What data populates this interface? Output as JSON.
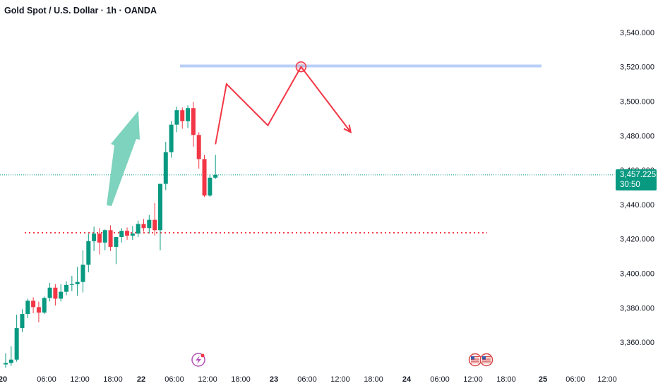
{
  "header": {
    "title": "Gold Spot / U.S. Dollar · 1h · OANDA"
  },
  "price_tag": {
    "price": "3,457.225",
    "countdown": "30:50"
  },
  "colors": {
    "up": "#089981",
    "down": "#f23645",
    "arrow_fill": "#7dd3bd",
    "resistance_line": "#b8cff7",
    "projection_line": "#f23645",
    "support_line": "#f23645",
    "price_line": "#089981"
  },
  "icons": [
    "lightning-event-icon",
    "us-flag-event-icon",
    "us-flag-event-icon"
  ],
  "chart_data": {
    "type": "candlestick",
    "title": "Gold Spot / U.S. Dollar · 1h · OANDA",
    "y_ticks": [
      "3,360.000",
      "3,380.000",
      "3,400.000",
      "3,420.000",
      "3,440.000",
      "3,460.000",
      "3,480.000",
      "3,500.000",
      "3,520.000",
      "3,540.000"
    ],
    "y_tick_values": [
      3360,
      3380,
      3400,
      3420,
      3440,
      3460,
      3480,
      3500,
      3520,
      3540
    ],
    "x_ticks": [
      {
        "label": "20",
        "bold": true
      },
      {
        "label": "06:00"
      },
      {
        "label": "12:00"
      },
      {
        "label": "18:00"
      },
      {
        "label": "22",
        "bold": true
      },
      {
        "label": "06:00"
      },
      {
        "label": "12:00"
      },
      {
        "label": "18:00"
      },
      {
        "label": "23",
        "bold": true
      },
      {
        "label": "06:00"
      },
      {
        "label": "12:00"
      },
      {
        "label": "18:00"
      },
      {
        "label": "24",
        "bold": true
      },
      {
        "label": "06:00"
      },
      {
        "label": "12:00"
      },
      {
        "label": "18:00"
      },
      {
        "label": "25",
        "bold": true
      },
      {
        "label": "06:00"
      },
      {
        "label": "12:00"
      }
    ],
    "candles": [
      {
        "o": 3347.1,
        "h": 3353.6,
        "l": 3345.1,
        "c": 3347.9
      },
      {
        "o": 3347.9,
        "h": 3357.6,
        "l": 3346.3,
        "c": 3349.9
      },
      {
        "o": 3349.9,
        "h": 3376.0,
        "l": 3348.7,
        "c": 3368.2
      },
      {
        "o": 3368.2,
        "h": 3379.2,
        "l": 3365.8,
        "c": 3376.4
      },
      {
        "o": 3376.4,
        "h": 3385.3,
        "l": 3374.0,
        "c": 3384.1
      },
      {
        "o": 3384.1,
        "h": 3386.1,
        "l": 3376.8,
        "c": 3380.4
      },
      {
        "o": 3380.4,
        "h": 3383.6,
        "l": 3371.6,
        "c": 3377.2
      },
      {
        "o": 3377.2,
        "h": 3386.5,
        "l": 3376.4,
        "c": 3385.7
      },
      {
        "o": 3385.7,
        "h": 3394.5,
        "l": 3383.7,
        "c": 3391.7
      },
      {
        "o": 3391.7,
        "h": 3393.7,
        "l": 3381.3,
        "c": 3385.3
      },
      {
        "o": 3385.3,
        "h": 3393.7,
        "l": 3383.7,
        "c": 3389.3
      },
      {
        "o": 3389.3,
        "h": 3395.4,
        "l": 3387.3,
        "c": 3393.3
      },
      {
        "o": 3393.3,
        "h": 3398.6,
        "l": 3389.7,
        "c": 3393.7
      },
      {
        "o": 3393.7,
        "h": 3403.8,
        "l": 3386.9,
        "c": 3395.0
      },
      {
        "o": 3395.0,
        "h": 3413.4,
        "l": 3388.9,
        "c": 3405.0
      },
      {
        "o": 3405.0,
        "h": 3423.1,
        "l": 3400.6,
        "c": 3418.7
      },
      {
        "o": 3418.7,
        "h": 3427.1,
        "l": 3413.0,
        "c": 3423.1
      },
      {
        "o": 3423.1,
        "h": 3426.3,
        "l": 3411.0,
        "c": 3417.9
      },
      {
        "o": 3417.9,
        "h": 3425.5,
        "l": 3413.4,
        "c": 3425.1
      },
      {
        "o": 3425.1,
        "h": 3427.9,
        "l": 3413.0,
        "c": 3415.4
      },
      {
        "o": 3415.4,
        "h": 3421.1,
        "l": 3405.4,
        "c": 3421.1
      },
      {
        "o": 3421.1,
        "h": 3426.3,
        "l": 3417.9,
        "c": 3424.7
      },
      {
        "o": 3424.7,
        "h": 3426.7,
        "l": 3419.5,
        "c": 3421.9
      },
      {
        "o": 3421.9,
        "h": 3427.5,
        "l": 3419.5,
        "c": 3423.1
      },
      {
        "o": 3423.1,
        "h": 3430.7,
        "l": 3421.1,
        "c": 3428.7
      },
      {
        "o": 3428.7,
        "h": 3431.5,
        "l": 3424.3,
        "c": 3426.3
      },
      {
        "o": 3426.3,
        "h": 3433.9,
        "l": 3423.1,
        "c": 3431.1
      },
      {
        "o": 3431.1,
        "h": 3440.8,
        "l": 3421.9,
        "c": 3425.1
      },
      {
        "o": 3425.1,
        "h": 3452.0,
        "l": 3413.4,
        "c": 3452.0
      },
      {
        "o": 3452.0,
        "h": 3476.4,
        "l": 3448.4,
        "c": 3470.4
      },
      {
        "o": 3470.4,
        "h": 3488.4,
        "l": 3467.2,
        "c": 3486.4
      },
      {
        "o": 3486.4,
        "h": 3496.8,
        "l": 3482.0,
        "c": 3494.8
      },
      {
        "o": 3494.8,
        "h": 3496.4,
        "l": 3484.0,
        "c": 3488.4
      },
      {
        "o": 3488.4,
        "h": 3497.6,
        "l": 3484.4,
        "c": 3496.0
      },
      {
        "o": 3496.0,
        "h": 3499.6,
        "l": 3473.6,
        "c": 3480.4
      },
      {
        "o": 3480.4,
        "h": 3482.0,
        "l": 3460.8,
        "c": 3466.4
      },
      {
        "o": 3466.4,
        "h": 3468.8,
        "l": 3444.4,
        "c": 3445.2
      },
      {
        "o": 3445.2,
        "h": 3457.6,
        "l": 3444.4,
        "c": 3455.6
      },
      {
        "o": 3455.6,
        "h": 3468.8,
        "l": 3454.8,
        "c": 3457.2
      }
    ],
    "annotations": {
      "resistance": 3520.5,
      "support": 3423.6,
      "current_price": 3457.225,
      "projection": [
        {
          "bar": 38.0,
          "price": 3475.0
        },
        {
          "bar": 40.0,
          "price": 3510.0
        },
        {
          "bar": 47.5,
          "price": 3486.0
        },
        {
          "bar": 53.5,
          "price": 3520.0
        },
        {
          "bar": 62.5,
          "price": 3482.0
        }
      ]
    }
  }
}
